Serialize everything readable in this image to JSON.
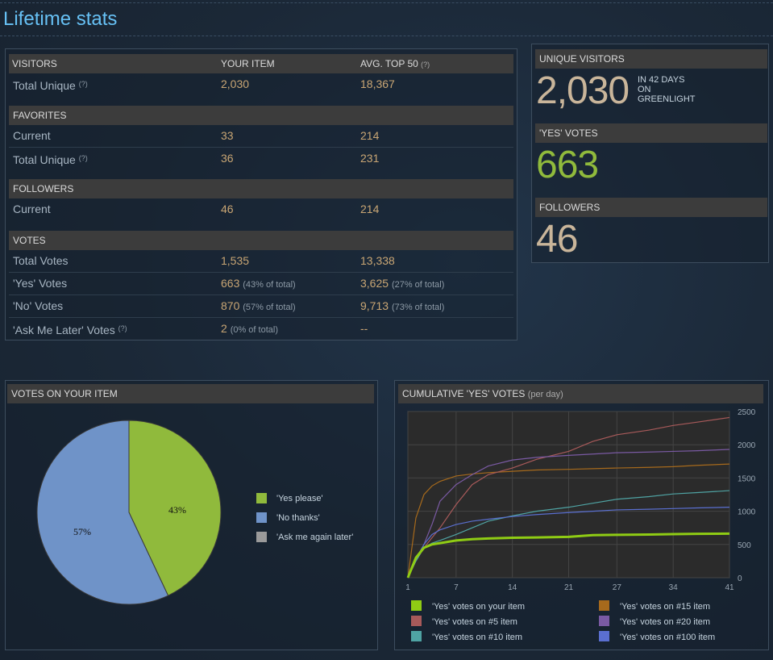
{
  "page": {
    "title": "Lifetime stats"
  },
  "stats": {
    "headers": {
      "visitors": "VISITORS",
      "your_item": "YOUR ITEM",
      "avg_top50": "AVG. TOP 50",
      "help": "(?)"
    },
    "visitors": {
      "label": "Total Unique",
      "help": "(?)",
      "yours": "2,030",
      "avg": "18,367"
    },
    "favorites": {
      "title": "FAVORITES",
      "current": {
        "label": "Current",
        "yours": "33",
        "avg": "214"
      },
      "total_unique": {
        "label": "Total Unique",
        "help": "(?)",
        "yours": "36",
        "avg": "231"
      }
    },
    "followers": {
      "title": "FOLLOWERS",
      "current": {
        "label": "Current",
        "yours": "46",
        "avg": "214"
      }
    },
    "votes": {
      "title": "VOTES",
      "total": {
        "label": "Total Votes",
        "yours": "1,535",
        "avg": "13,338"
      },
      "yes": {
        "label": "'Yes' Votes",
        "yours": "663",
        "yours_pct": "(43% of total)",
        "avg": "3,625",
        "avg_pct": "(27% of total)"
      },
      "no": {
        "label": "'No' Votes",
        "yours": "870",
        "yours_pct": "(57% of total)",
        "avg": "9,713",
        "avg_pct": "(73% of total)"
      },
      "later": {
        "label": "'Ask Me Later' Votes",
        "help": "(?)",
        "yours": "2",
        "yours_pct": "(0% of total)",
        "avg": "--"
      }
    }
  },
  "summary": {
    "unique_visitors": {
      "title": "UNIQUE VISITORS",
      "value": "2,030",
      "note1": "IN 42 DAYS",
      "note2": "ON",
      "note3": "GREENLIGHT"
    },
    "yes_votes": {
      "title": "'YES' VOTES",
      "value": "663"
    },
    "followers": {
      "title": "FOLLOWERS",
      "value": "46"
    }
  },
  "pie": {
    "title": "VOTES ON YOUR ITEM",
    "label_yes": "43%",
    "label_no": "57%",
    "legend": [
      "'Yes please'",
      "'No thanks'",
      "'Ask me again later'"
    ]
  },
  "line": {
    "title": "CUMULATIVE 'YES' VOTES",
    "subtitle": "(per day)"
  },
  "colors": {
    "yes": "#90ba3c",
    "no": "#6f93c8",
    "later": "#9a9a9a",
    "your_item": "#8fcc14",
    "item5": "#a85a5a",
    "item10": "#4fa3a3",
    "item15": "#a76a1c",
    "item20": "#7a5aa3",
    "item100": "#5a6fd0"
  },
  "chart_data": [
    {
      "type": "pie",
      "title": "VOTES ON YOUR ITEM",
      "categories": [
        "'Yes please'",
        "'No thanks'",
        "'Ask me again later'"
      ],
      "values": [
        43,
        57,
        0
      ]
    },
    {
      "type": "line",
      "title": "CUMULATIVE 'YES' VOTES",
      "subtitle": "(per day)",
      "xlim": [
        1,
        41
      ],
      "ylim": [
        0,
        2500
      ],
      "x_ticks": [
        1,
        7,
        14,
        21,
        27,
        34,
        41
      ],
      "y_ticks": [
        0,
        500,
        1000,
        1500,
        2000,
        2500
      ],
      "grid": true,
      "x": [
        1,
        2,
        3,
        4,
        5,
        7,
        9,
        11,
        14,
        17,
        21,
        24,
        27,
        31,
        34,
        37,
        41
      ],
      "series": [
        {
          "name": "'Yes' votes on your item",
          "values": [
            0,
            300,
            450,
            500,
            520,
            560,
            580,
            590,
            600,
            605,
            615,
            640,
            645,
            650,
            655,
            660,
            663
          ]
        },
        {
          "name": "'Yes' votes on #15 item",
          "values": [
            0,
            900,
            1250,
            1380,
            1450,
            1530,
            1560,
            1580,
            1600,
            1620,
            1630,
            1640,
            1650,
            1660,
            1670,
            1690,
            1710
          ]
        },
        {
          "name": "'Yes' votes on #5 item",
          "values": [
            0,
            250,
            450,
            600,
            750,
            1100,
            1400,
            1550,
            1650,
            1780,
            1900,
            2050,
            2150,
            2220,
            2290,
            2340,
            2410
          ]
        },
        {
          "name": "'Yes' votes on #20 item",
          "values": [
            0,
            280,
            500,
            800,
            1150,
            1400,
            1550,
            1680,
            1770,
            1810,
            1840,
            1860,
            1880,
            1890,
            1900,
            1910,
            1930
          ]
        },
        {
          "name": "'Yes' votes on #10 item",
          "values": [
            0,
            250,
            450,
            520,
            560,
            650,
            750,
            850,
            930,
            1000,
            1060,
            1120,
            1180,
            1220,
            1260,
            1280,
            1310
          ]
        },
        {
          "name": "'Yes' votes on #100 item",
          "values": [
            0,
            280,
            500,
            650,
            720,
            800,
            850,
            880,
            920,
            950,
            980,
            1000,
            1020,
            1030,
            1040,
            1050,
            1060
          ]
        }
      ]
    }
  ]
}
